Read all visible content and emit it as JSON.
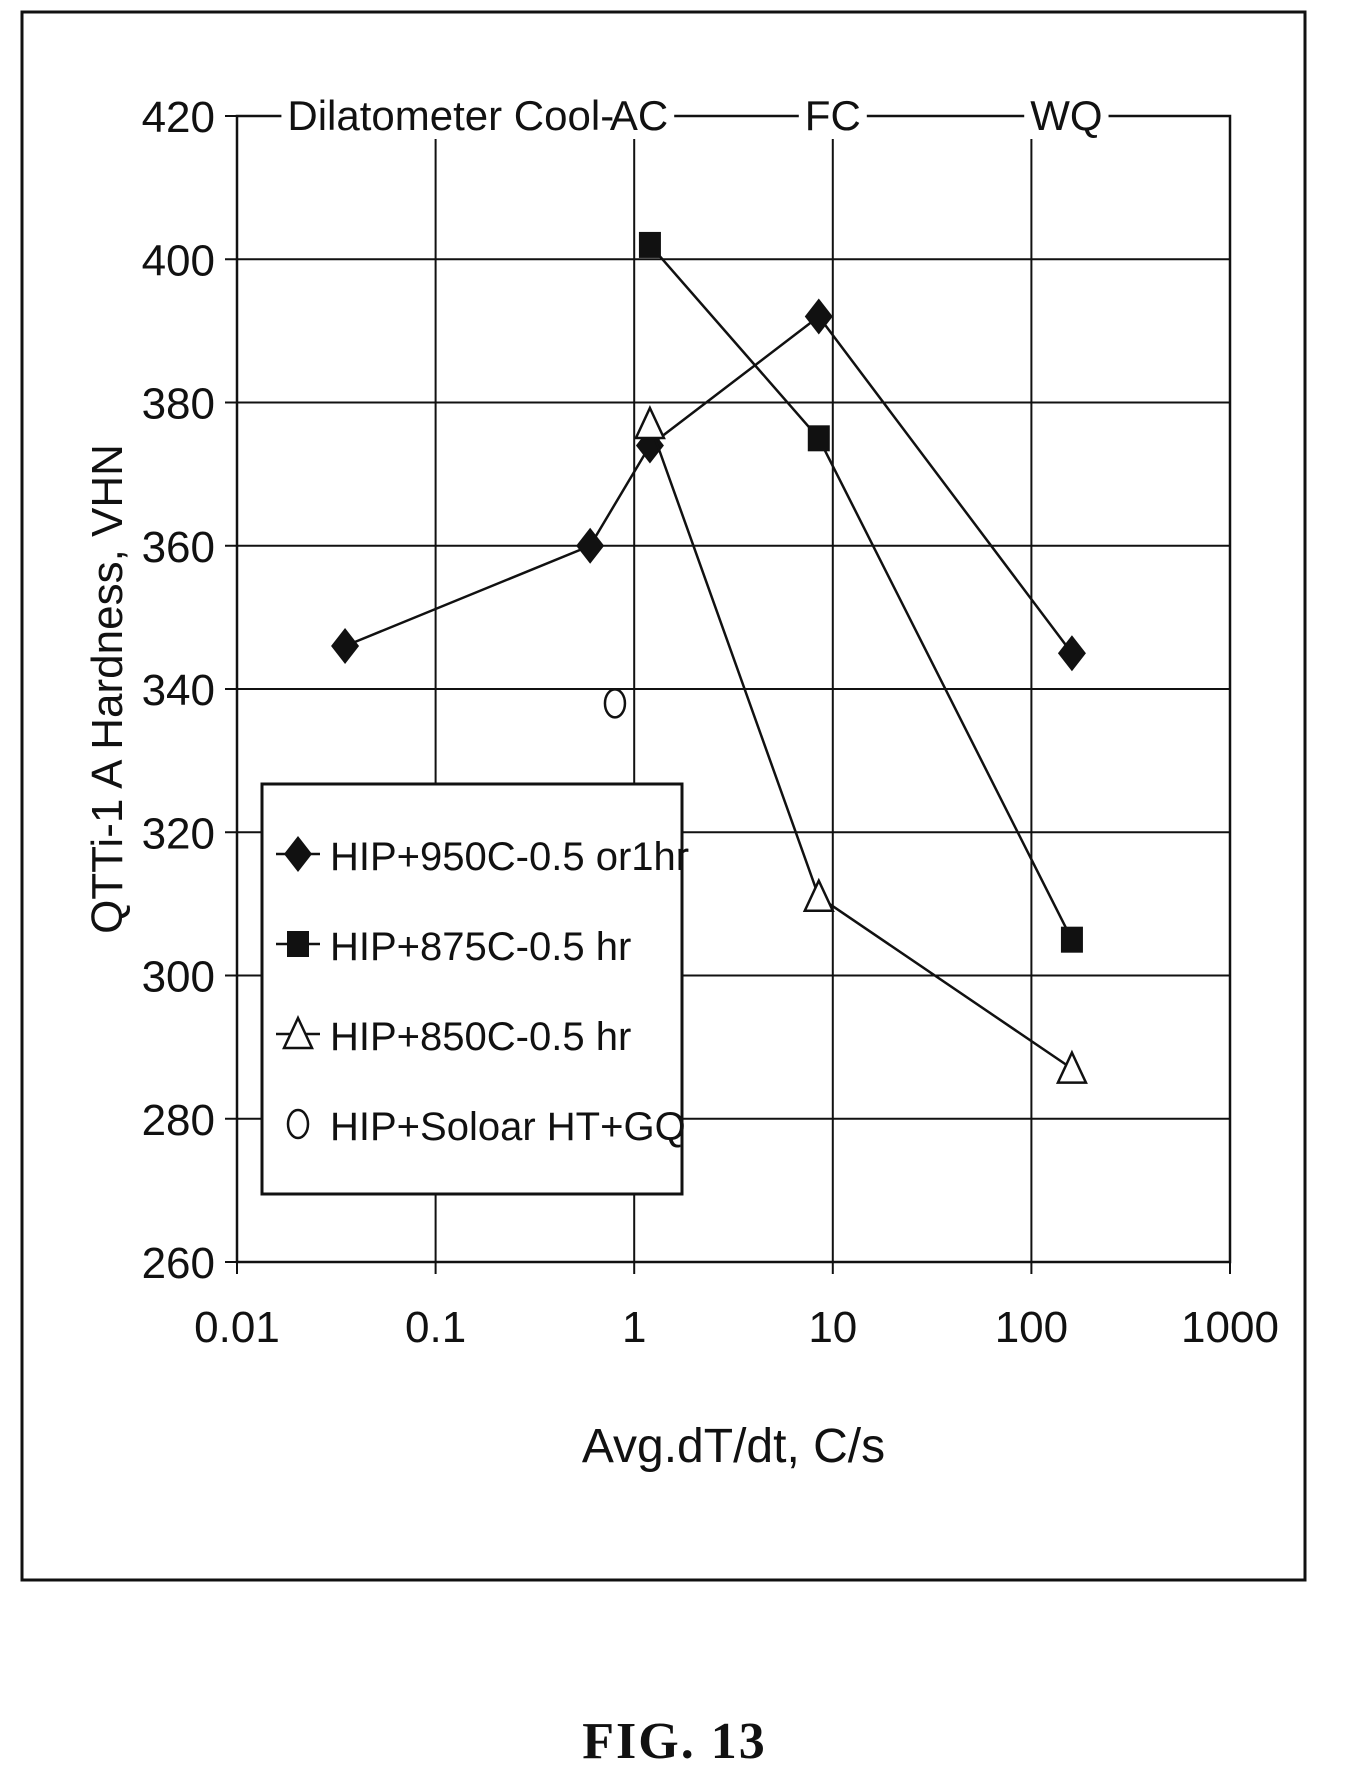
{
  "figure": {
    "caption": "FIG. 13"
  },
  "chart_data": {
    "type": "line",
    "xlabel": "Avg.dT/dt, C/s",
    "ylabel": "QTTi-1 A Hardness, VHN",
    "x_scale": "log",
    "xlim": [
      0.01,
      1000
    ],
    "ylim": [
      260,
      420
    ],
    "x_ticks": [
      0.01,
      0.1,
      1,
      10,
      100,
      1000
    ],
    "x_tick_labels": [
      "0.01",
      "0.1",
      "1",
      "10",
      "100",
      "1000"
    ],
    "y_ticks": [
      260,
      280,
      300,
      320,
      340,
      360,
      380,
      400,
      420
    ],
    "y_tick_labels": [
      "260",
      "280",
      "300",
      "320",
      "340",
      "360",
      "380",
      "400",
      "420"
    ],
    "grid": true,
    "legend_position": "lower-left",
    "top_annotations": [
      {
        "text": "Dilatometer Cool",
        "x": 0.1
      },
      {
        "text": "AC",
        "x": 1
      },
      {
        "text": "FC",
        "x": 10
      },
      {
        "text": "WQ",
        "x": 150
      }
    ],
    "series": [
      {
        "name": "HIP+950C-0.5 or1hr",
        "marker": "diamond",
        "color": "#111111",
        "x": [
          0.035,
          0.6,
          1.2,
          8.5,
          160
        ],
        "y": [
          346,
          360,
          374,
          392,
          345
        ]
      },
      {
        "name": "HIP+875C-0.5 hr",
        "marker": "square",
        "color": "#111111",
        "x": [
          1.2,
          8.5,
          160
        ],
        "y": [
          402,
          375,
          305
        ]
      },
      {
        "name": "HIP+850C-0.5 hr",
        "marker": "triangle-open",
        "color": "#111111",
        "x": [
          1.2,
          8.5,
          160
        ],
        "y": [
          377,
          311,
          287
        ]
      },
      {
        "name": "HIP+Soloar HT+GQ",
        "marker": "circle-open",
        "color": "#111111",
        "x": [
          0.8
        ],
        "y": [
          338
        ]
      }
    ]
  }
}
